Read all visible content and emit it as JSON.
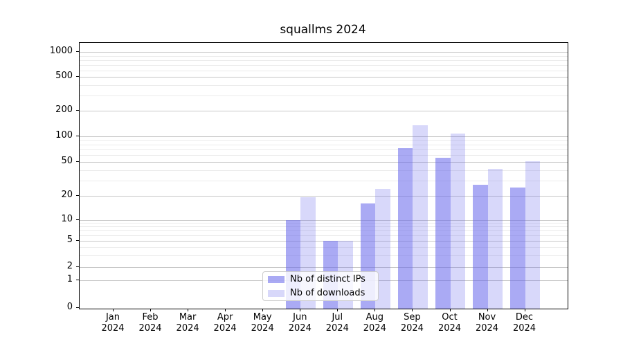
{
  "chart_data": {
    "type": "bar",
    "title": "squallms 2024",
    "categories": [
      "Jan",
      "Feb",
      "Mar",
      "Apr",
      "May",
      "Jun",
      "Jul",
      "Aug",
      "Sep",
      "Oct",
      "Nov",
      "Dec"
    ],
    "category_year": "2024",
    "series": [
      {
        "name": "Nb of distinct IPs",
        "color": "rgba(100,100,235,0.55)",
        "values": [
          0,
          0,
          0,
          0,
          0,
          10,
          5,
          16,
          73,
          56,
          27,
          25
        ]
      },
      {
        "name": "Nb of downloads",
        "color": "rgba(100,100,235,0.25)",
        "values": [
          0,
          0,
          0,
          0,
          0,
          19,
          5,
          24,
          136,
          107,
          41,
          51
        ]
      }
    ],
    "yscale": "symlog",
    "y_ticks": [
      0,
      1,
      2,
      5,
      10,
      20,
      50,
      100,
      200,
      500,
      1000
    ],
    "ylim": [
      0,
      1400
    ],
    "xlabel": "",
    "ylabel": "",
    "grid": "on",
    "legend_position": "lower center"
  }
}
